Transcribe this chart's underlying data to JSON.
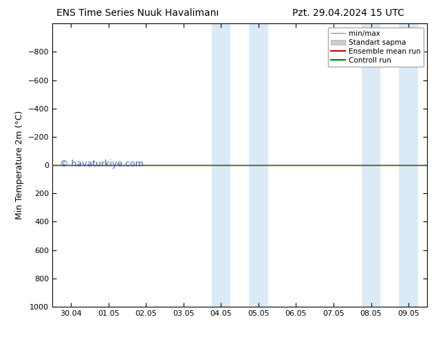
{
  "title": "ENS Time Series Nuuk Havalimanı",
  "title_right": "Pzt. 29.04.2024 15 UTC",
  "ylabel": "Min Temperature 2m (°C)",
  "ylim_bottom": 1000,
  "ylim_top": -1000,
  "yticks": [
    -800,
    -600,
    -400,
    -200,
    0,
    200,
    400,
    600,
    800,
    1000
  ],
  "xtick_labels": [
    "30.04",
    "01.05",
    "02.05",
    "03.05",
    "04.05",
    "05.05",
    "06.05",
    "07.05",
    "08.05",
    "09.05"
  ],
  "xtick_positions": [
    0,
    1,
    2,
    3,
    4,
    5,
    6,
    7,
    8,
    9
  ],
  "xlim": [
    -0.5,
    9.5
  ],
  "shaded_bands": [
    {
      "x_start": 3.75,
      "x_end": 4.25,
      "color": "#daeaf7"
    },
    {
      "x_start": 4.75,
      "x_end": 5.25,
      "color": "#daeaf7"
    },
    {
      "x_start": 7.75,
      "x_end": 8.25,
      "color": "#daeaf7"
    },
    {
      "x_start": 8.75,
      "x_end": 9.25,
      "color": "#daeaf7"
    }
  ],
  "control_run_color": "#008000",
  "ensemble_mean_color": "#cc0000",
  "minmax_color": "#999999",
  "std_color": "#cccccc",
  "watermark": "© havaturkiye.com",
  "watermark_color": "#3060b0",
  "background_color": "#ffffff",
  "figsize": [
    6.34,
    4.9
  ],
  "dpi": 100
}
